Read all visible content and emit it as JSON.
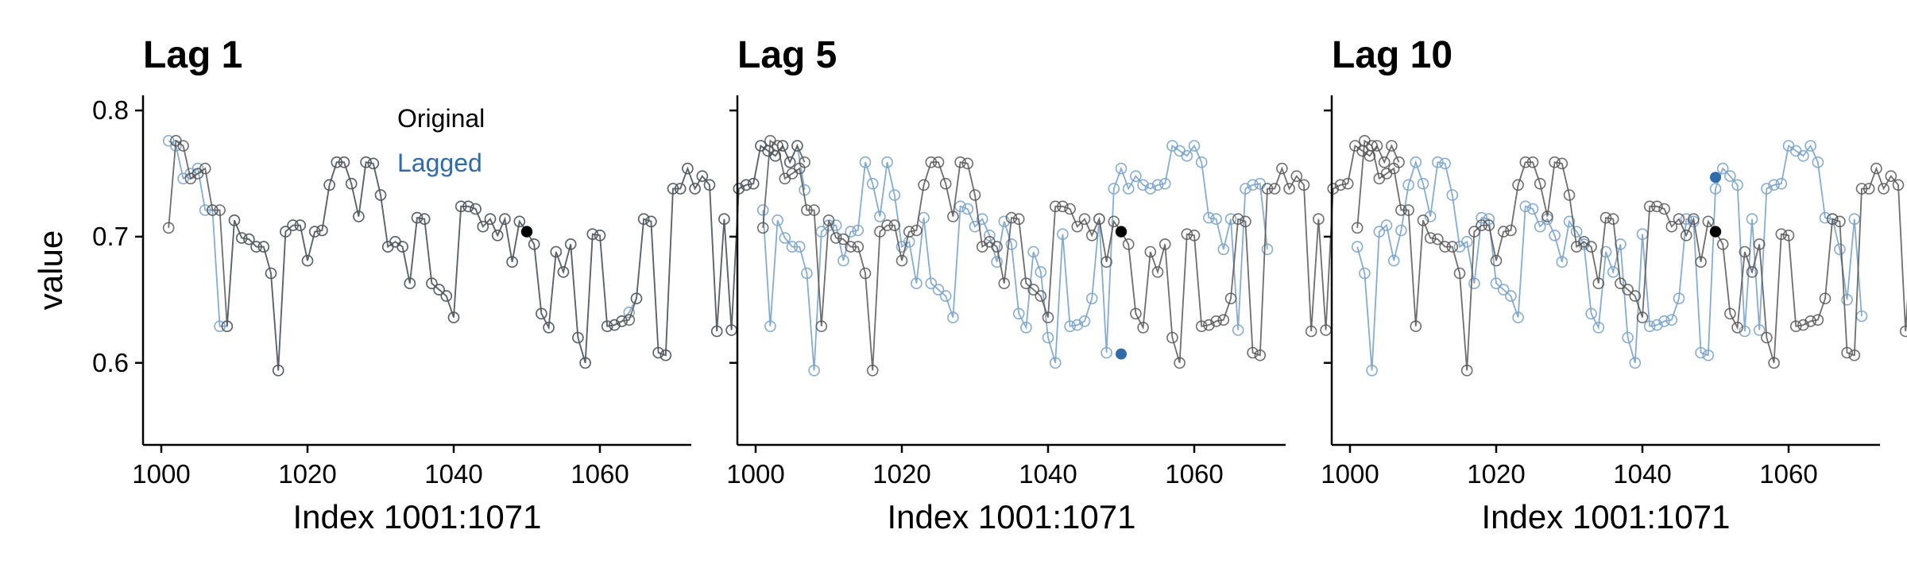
{
  "chart_data": {
    "type": "line",
    "shared_y": true,
    "ylabel": "value",
    "ylim": [
      0.535,
      0.812
    ],
    "yticks": [
      0.6,
      0.7,
      0.8
    ],
    "ytick_labels": [
      "0.6",
      "0.7",
      "0.8"
    ],
    "xlim": [
      997.5,
      1072.5
    ],
    "xticks": [
      1000,
      1020,
      1040,
      1060
    ],
    "xtick_labels": [
      "1000",
      "1020",
      "1040",
      "1060"
    ],
    "xlabel": "Index 1001:1071",
    "x_start": 1001,
    "highlight_x": 1050,
    "legend": {
      "position": "top-center",
      "entries": [
        "Original",
        "Lagged"
      ]
    },
    "colors": {
      "original": "#555555",
      "lagged": "#7aa3c9",
      "highlight_original": "#000000",
      "highlight_lagged": "#2f6ca8",
      "legend_original": "#000000",
      "legend_lagged": "#2f6ca8"
    },
    "original": [
      0.707,
      0.776,
      0.772,
      0.746,
      0.75,
      0.754,
      0.721,
      0.721,
      0.629,
      0.713,
      0.699,
      0.698,
      0.692,
      0.692,
      0.671,
      0.594,
      0.704,
      0.709,
      0.709,
      0.681,
      0.704,
      0.705,
      0.741,
      0.759,
      0.759,
      0.742,
      0.716,
      0.759,
      0.758,
      0.733,
      0.692,
      0.696,
      0.692,
      0.663,
      0.715,
      0.714,
      0.663,
      0.658,
      0.653,
      0.636,
      0.724,
      0.724,
      0.722,
      0.708,
      0.714,
      0.701,
      0.714,
      0.68,
      0.712,
      0.704,
      0.694,
      0.639,
      0.628,
      0.688,
      0.672,
      0.694,
      0.62,
      0.6,
      0.702,
      0.701,
      0.629,
      0.63,
      0.633,
      0.634,
      0.651,
      0.714,
      0.712,
      0.608,
      0.606,
      0.738,
      0.738,
      0.754,
      0.738,
      0.748,
      0.741,
      0.625,
      0.714,
      0.626,
      0.738,
      0.741,
      0.742,
      0.772,
      0.768,
      0.764,
      0.772,
      0.759,
      0.772,
      0.759
    ],
    "panels": [
      {
        "title": "Lag 1",
        "show_legend": true,
        "lagged": [
          0.776,
          0.772,
          0.746,
          0.75,
          0.754,
          0.721,
          0.721,
          0.629,
          0.629,
          0.713,
          0.699,
          0.698,
          0.692,
          0.692,
          0.671,
          0.594,
          0.704,
          0.709,
          0.709,
          0.681,
          0.704,
          0.705,
          0.741,
          0.759,
          0.759,
          0.742,
          0.716,
          0.759,
          0.758,
          0.733,
          0.692,
          0.696,
          0.692,
          0.663,
          0.715,
          0.714,
          0.663,
          0.658,
          0.653,
          0.636,
          0.724,
          0.724,
          0.722,
          0.708,
          0.714,
          0.701,
          0.714,
          0.68,
          0.712,
          0.704,
          0.694,
          0.639,
          0.628,
          0.688,
          0.672,
          0.694,
          0.62,
          0.6,
          0.702,
          0.701,
          0.629,
          0.63,
          0.633,
          0.64,
          0.651,
          0.714,
          0.712,
          0.608,
          0.606,
          0.738,
          0.738,
          0.754,
          0.738,
          0.748,
          0.741,
          0.625,
          0.714,
          0.626,
          0.738,
          0.741,
          0.742,
          0.772,
          0.768,
          0.764,
          0.772,
          0.759,
          0.772,
          0.737
        ]
      },
      {
        "title": "Lag 5",
        "show_legend": false,
        "lagged": [
          0.721,
          0.629,
          0.713,
          0.699,
          0.692,
          0.692,
          0.671,
          0.594,
          0.704,
          0.709,
          0.709,
          0.681,
          0.704,
          0.705,
          0.759,
          0.742,
          0.716,
          0.759,
          0.733,
          0.692,
          0.696,
          0.663,
          0.715,
          0.663,
          0.658,
          0.653,
          0.636,
          0.724,
          0.722,
          0.708,
          0.714,
          0.701,
          0.68,
          0.712,
          0.694,
          0.639,
          0.628,
          0.688,
          0.672,
          0.62,
          0.6,
          0.702,
          0.629,
          0.63,
          0.633,
          0.651,
          0.714,
          0.608,
          0.738,
          0.754,
          0.738,
          0.748,
          0.741,
          0.738,
          0.741,
          0.742,
          0.772,
          0.768,
          0.764,
          0.772,
          0.759,
          0.715,
          0.714,
          0.69,
          0.714,
          0.626,
          0.738,
          0.741,
          0.742,
          0.69
        ],
        "highlight_lagged": 0.607
      },
      {
        "title": "Lag 10",
        "show_legend": false,
        "lagged": [
          0.692,
          0.671,
          0.594,
          0.704,
          0.709,
          0.681,
          0.705,
          0.741,
          0.759,
          0.742,
          0.716,
          0.759,
          0.758,
          0.733,
          0.692,
          0.696,
          0.663,
          0.715,
          0.714,
          0.663,
          0.658,
          0.653,
          0.636,
          0.724,
          0.722,
          0.708,
          0.714,
          0.701,
          0.68,
          0.712,
          0.704,
          0.694,
          0.639,
          0.628,
          0.688,
          0.672,
          0.694,
          0.62,
          0.6,
          0.702,
          0.629,
          0.63,
          0.633,
          0.634,
          0.651,
          0.714,
          0.712,
          0.608,
          0.606,
          0.738,
          0.754,
          0.748,
          0.741,
          0.625,
          0.714,
          0.626,
          0.738,
          0.741,
          0.742,
          0.772,
          0.768,
          0.764,
          0.772,
          0.759,
          0.715,
          0.714,
          0.69,
          0.65,
          0.714,
          0.637
        ],
        "highlight_lagged": 0.747
      }
    ]
  }
}
